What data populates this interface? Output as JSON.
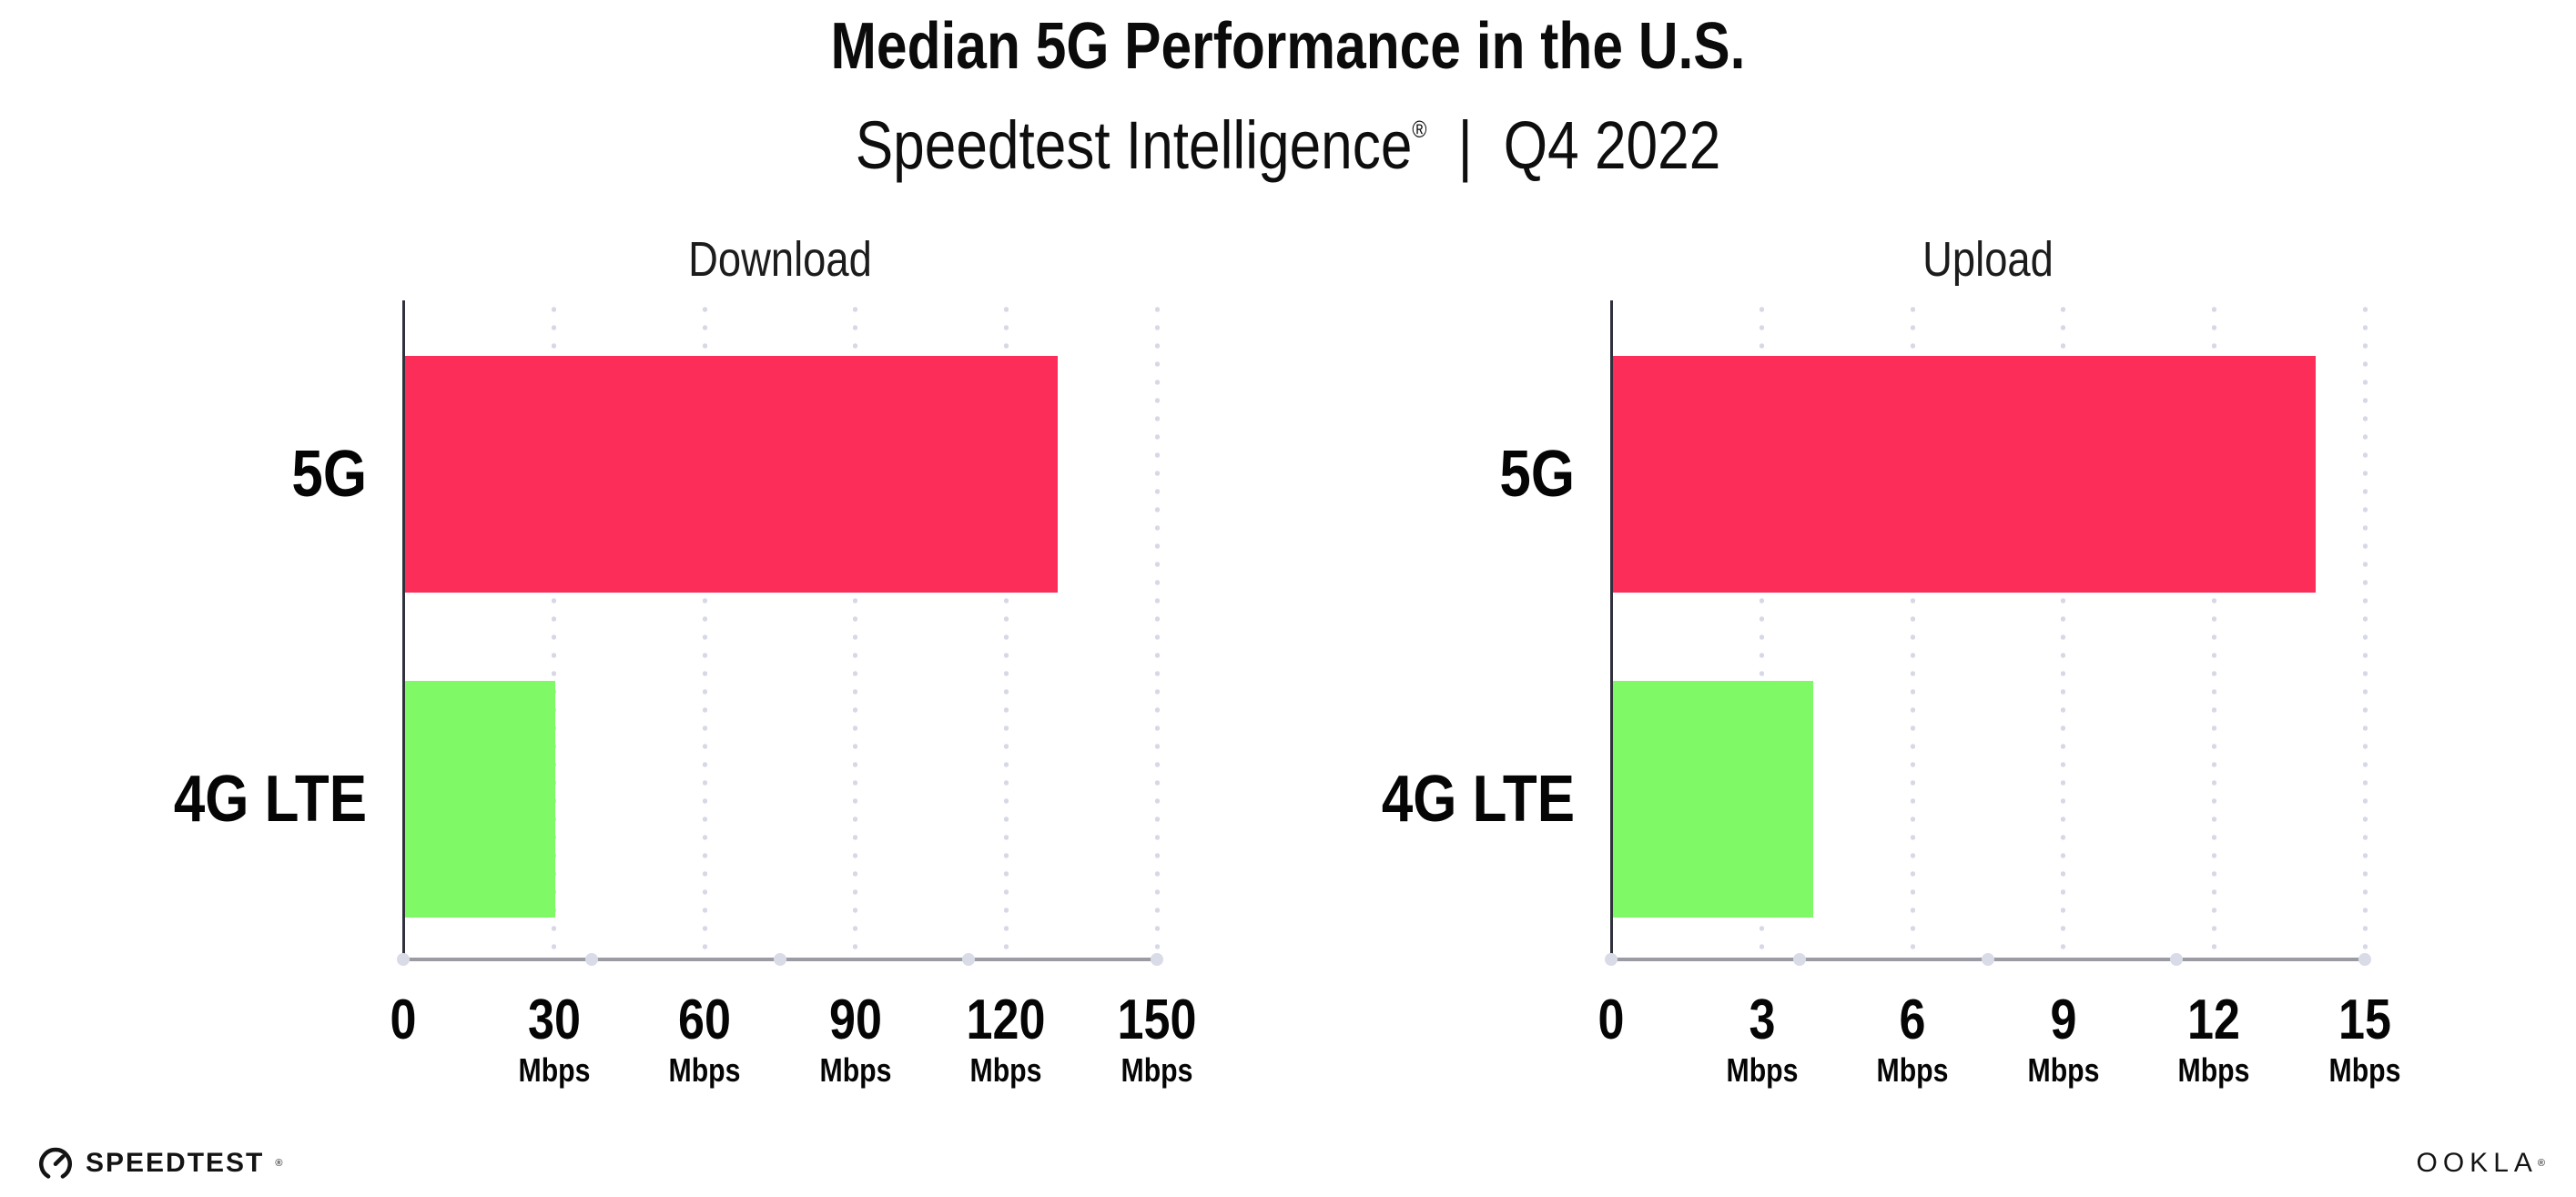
{
  "header": {
    "title": "Median 5G Performance in the U.S.",
    "subtitle_brand": "Speedtest Intelligence",
    "subtitle_reg_mark": "®",
    "subtitle_separator": "|",
    "subtitle_period": "Q4 2022"
  },
  "chart_data": [
    {
      "type": "bar",
      "orientation": "horizontal",
      "title": "Download",
      "categories": [
        "5G",
        "4G LTE"
      ],
      "values": [
        130,
        30
      ],
      "unit": "Mbps",
      "xlim": [
        0,
        150
      ],
      "xticks": [
        0,
        30,
        60,
        90,
        120,
        150
      ],
      "tick_unit_label": "Mbps",
      "bar_colors": [
        "#fc2d58",
        "#7ffa66"
      ],
      "grid": "vertical-dotted",
      "legend": "none"
    },
    {
      "type": "bar",
      "orientation": "horizontal",
      "title": "Upload",
      "categories": [
        "5G",
        "4G LTE"
      ],
      "values": [
        14,
        4
      ],
      "unit": "Mbps",
      "xlim": [
        0,
        15
      ],
      "xticks": [
        0,
        3,
        6,
        9,
        12,
        15
      ],
      "tick_unit_label": "Mbps",
      "bar_colors": [
        "#fc2d58",
        "#7ffa66"
      ],
      "grid": "vertical-dotted",
      "legend": "none"
    }
  ],
  "footer": {
    "speedtest_logo_text": "SPEEDTEST",
    "speedtest_reg_mark": "®",
    "ookla_logo_text": "OOKLA",
    "ookla_reg_mark": "®"
  },
  "colors": {
    "bar_5g": "#fc2d58",
    "bar_4g_lte": "#7ffa66",
    "x_axis_line": "#9b9ba3",
    "y_axis_line": "#31313d",
    "gridline": "#d6d8e6",
    "text": "#0b0b0b",
    "background": "#ffffff"
  }
}
